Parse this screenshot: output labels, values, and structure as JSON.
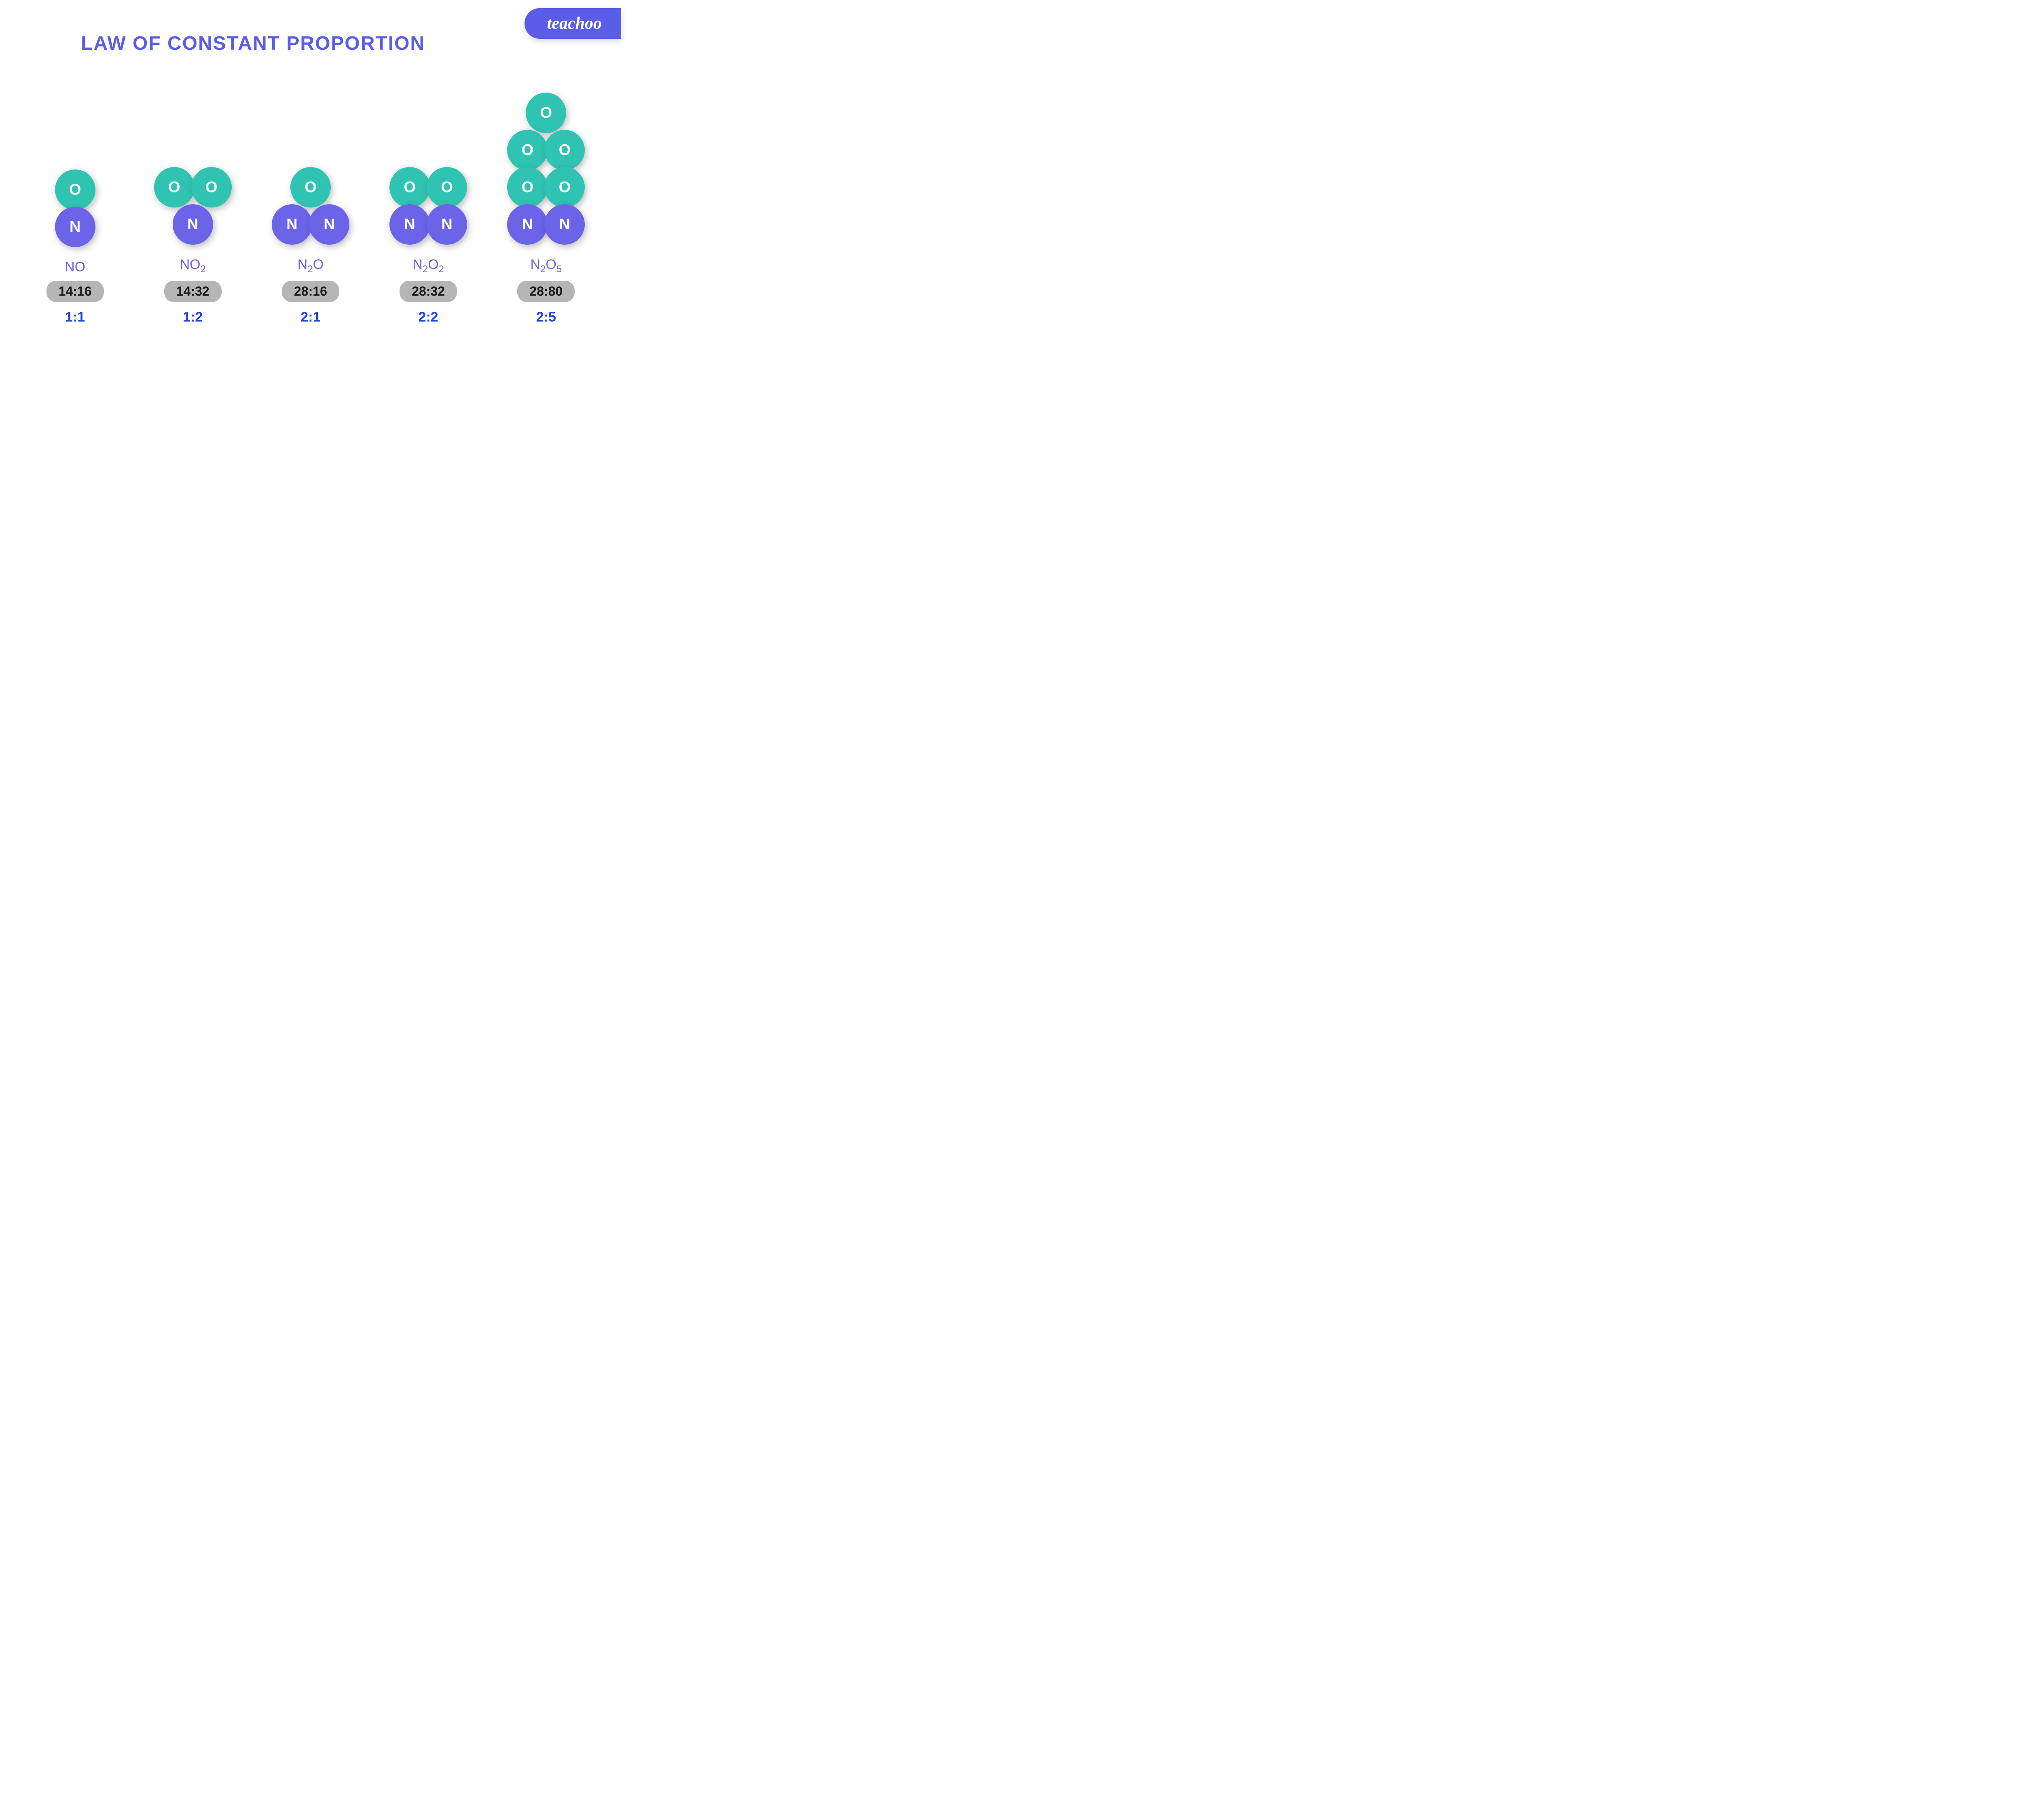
{
  "logo": "teachoo",
  "title": "LAW OF CONSTANT PROPORTION",
  "colors": {
    "oxygen": "#2fc4b2",
    "nitrogen": "#6b63e8",
    "title": "#5a5de8",
    "badge_bg": "#5a5de8",
    "mass_bg": "#b5b5b5",
    "ratio_text": "#2244dd",
    "background": "#ffffff"
  },
  "atom_labels": {
    "oxygen": "O",
    "nitrogen": "N"
  },
  "molecules": [
    {
      "formula_html": "NO",
      "mass_ratio": "14:16",
      "simple_ratio": "1:1",
      "structure": [
        [
          "O"
        ],
        [
          "N"
        ]
      ]
    },
    {
      "formula_html": "NO<sub>2</sub>",
      "mass_ratio": "14:32",
      "simple_ratio": "1:2",
      "structure": [
        [
          "O",
          "O"
        ],
        [
          "N"
        ]
      ]
    },
    {
      "formula_html": "N<sub>2</sub>O",
      "mass_ratio": "28:16",
      "simple_ratio": "2:1",
      "structure": [
        [
          "O"
        ],
        [
          "N",
          "N"
        ]
      ]
    },
    {
      "formula_html": "N<sub>2</sub>O<sub>2</sub>",
      "mass_ratio": "28:32",
      "simple_ratio": "2:2",
      "structure": [
        [
          "O",
          "O"
        ],
        [
          "N",
          "N"
        ]
      ]
    },
    {
      "formula_html": "N<sub>2</sub>O<sub>5</sub>",
      "mass_ratio": "28:80",
      "simple_ratio": "2:5",
      "structure": [
        [
          "O"
        ],
        [
          "O",
          "O"
        ],
        [
          "O",
          "O"
        ],
        [
          "N",
          "N"
        ]
      ]
    }
  ]
}
